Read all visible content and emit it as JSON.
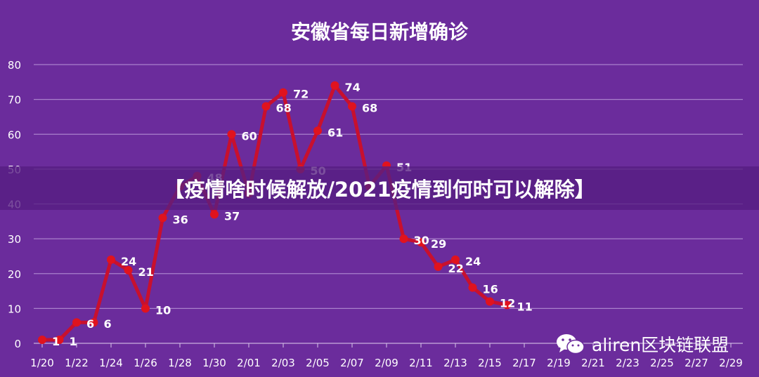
{
  "banner": {
    "text": "【疫情啥时候解放/2021疫情到何时可以解除】"
  },
  "watermark": {
    "text": "aliren区块链联盟",
    "icon": "wechat-icon"
  },
  "colors": {
    "background": "#6b2c9c",
    "line": "#c8102e",
    "marker": "#e0131e",
    "text": "#ffffff",
    "grid": "#b48fd4"
  },
  "chart_data": {
    "type": "line",
    "title": "安徽省每日新增确诊",
    "xlabel": "",
    "ylabel": "",
    "ylim": [
      0,
      80
    ],
    "yticks": [
      "0",
      "10",
      "20",
      "30",
      "40",
      "50",
      "60",
      "70",
      "80"
    ],
    "xticks": [
      "1/20",
      "1/22",
      "1/24",
      "1/26",
      "1/28",
      "1/30",
      "2/01",
      "2/03",
      "2/05",
      "2/07",
      "2/09",
      "2/11",
      "2/13",
      "2/15",
      "2/17",
      "2/19",
      "2/21",
      "2/23",
      "2/25",
      "2/27",
      "2/29"
    ],
    "grid": true,
    "x": [
      "1/20",
      "1/21",
      "1/22",
      "1/23",
      "1/24",
      "1/25",
      "1/26",
      "1/27",
      "1/28",
      "1/29",
      "1/30",
      "1/31",
      "2/01",
      "2/02",
      "2/03",
      "2/04",
      "2/05",
      "2/06",
      "2/07",
      "2/08",
      "2/09",
      "2/10",
      "2/11",
      "2/12",
      "2/13",
      "2/14",
      "2/15",
      "2/16"
    ],
    "values": [
      1,
      1,
      6,
      6,
      24,
      21,
      10,
      36,
      45,
      48,
      37,
      60,
      43,
      68,
      72,
      50,
      61,
      74,
      68,
      45,
      51,
      30,
      29,
      22,
      24,
      16,
      12,
      11
    ],
    "labels": [
      "1",
      "1",
      "6",
      "6",
      "24",
      "21",
      "10",
      "36",
      "",
      "48",
      "37",
      "60",
      "",
      "68",
      "72",
      "50",
      "61",
      "74",
      "68",
      "",
      "51",
      "30",
      "29",
      "22",
      "24",
      "16",
      "12",
      "11"
    ]
  }
}
